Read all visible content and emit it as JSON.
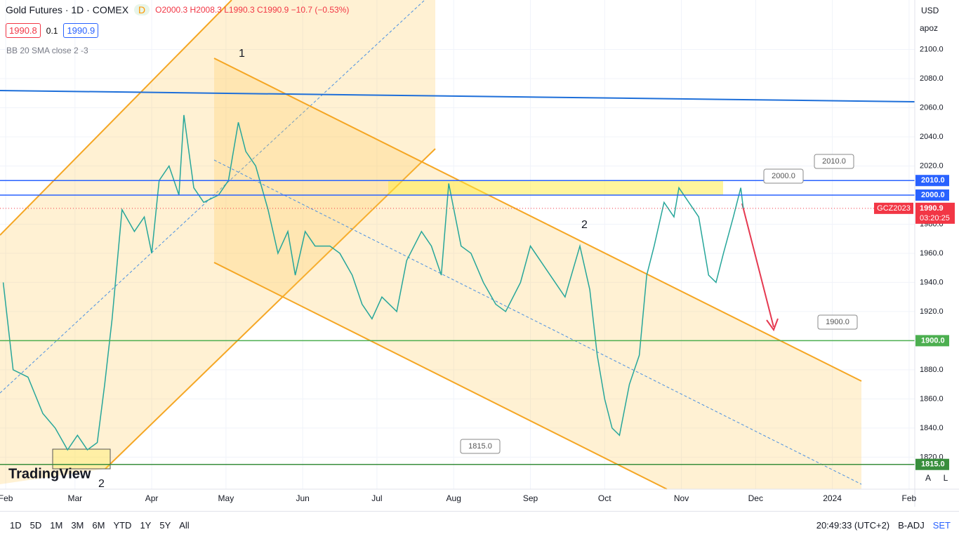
{
  "header": {
    "symbol": "Gold Futures · 1D · COMEX",
    "badge": "D",
    "ohlc": "O2000.3 H2008.3 L1990.3 C1990.9 −10.7 (−0.53%)",
    "sell": "1990.8",
    "spread": "0.1",
    "buy": "1990.9",
    "indicator": "BB 20 SMA close 2 -3"
  },
  "top_right": {
    "currency": "USD",
    "setting": "apoz"
  },
  "chart_data": {
    "type": "line",
    "color": "#26a69a",
    "x": [
      30,
      34,
      40,
      46,
      51,
      56,
      60,
      64,
      68,
      71,
      74,
      78,
      83,
      87,
      90,
      93,
      97,
      101,
      103,
      107,
      111,
      117,
      121,
      125,
      128,
      132,
      137,
      141,
      145,
      148,
      152,
      156,
      162,
      166,
      171,
      175,
      179,
      183,
      189,
      193,
      199,
      203,
      207,
      210,
      215,
      219,
      224,
      229,
      233,
      239,
      243,
      247,
      251,
      257,
      263,
      267,
      270,
      273,
      276,
      279,
      283,
      287,
      290,
      293,
      297,
      301,
      303,
      307,
      311,
      315,
      318,
      321,
      325,
      328,
      329
    ],
    "values": [
      1940,
      1880,
      1875,
      1850,
      1840,
      1825,
      1835,
      1825,
      1830,
      1870,
      1915,
      1990,
      1975,
      1985,
      1960,
      2010,
      2020,
      2000,
      2055,
      2005,
      1995,
      2000,
      2010,
      2050,
      2030,
      2020,
      1990,
      1960,
      1975,
      1945,
      1975,
      1965,
      1965,
      1960,
      1945,
      1925,
      1915,
      1930,
      1920,
      1955,
      1975,
      1965,
      1945,
      2008,
      1965,
      1960,
      1940,
      1925,
      1920,
      1940,
      1965,
      1955,
      1945,
      1930,
      1965,
      1935,
      1890,
      1860,
      1840,
      1835,
      1870,
      1890,
      1945,
      1965,
      1995,
      1985,
      2005,
      1995,
      1985,
      1945,
      1940,
      1960,
      1985,
      2005,
      1991
    ],
    "xlim": [
      28.7,
      398.3
    ],
    "xticks": [
      {
        "value": 31,
        "label": "Feb"
      },
      {
        "value": 59,
        "label": "Mar"
      },
      {
        "value": 90,
        "label": "Apr"
      },
      {
        "value": 120,
        "label": "May"
      },
      {
        "value": 151,
        "label": "Jun"
      },
      {
        "value": 181,
        "label": "Jul"
      },
      {
        "value": 212,
        "label": "Aug"
      },
      {
        "value": 243,
        "label": "Sep"
      },
      {
        "value": 273,
        "label": "Oct"
      },
      {
        "value": 304,
        "label": "Nov"
      },
      {
        "value": 334,
        "label": "Dec"
      },
      {
        "value": 365,
        "label": "2024"
      },
      {
        "value": 396,
        "label": "Feb"
      }
    ],
    "ylim": [
      1798,
      2134
    ],
    "yticks": [
      {
        "value": 1820,
        "label": "1820.0"
      },
      {
        "value": 1840,
        "label": "1840.0"
      },
      {
        "value": 1860,
        "label": "1860.0"
      },
      {
        "value": 1880,
        "label": "1880.0"
      },
      {
        "value": 1920,
        "label": "1920.0"
      },
      {
        "value": 1940,
        "label": "1940.0"
      },
      {
        "value": 1960,
        "label": "1960.0"
      },
      {
        "value": 1980,
        "label": "1980.0"
      },
      {
        "value": 2020,
        "label": "2020.0"
      },
      {
        "value": 2040,
        "label": "2040.0"
      },
      {
        "value": 2060,
        "label": "2060.0"
      },
      {
        "value": 2080,
        "label": "2080.0"
      },
      {
        "value": 2100,
        "label": "2100.0"
      }
    ],
    "grid": true,
    "levels": [
      {
        "value": 2010,
        "label": "2010.0",
        "color": "#2962ff"
      },
      {
        "value": 2000,
        "label": "2000.0",
        "color": "#2962ff"
      },
      {
        "value": 1900,
        "label": "1900.0",
        "color": "#4caf50"
      },
      {
        "value": 1815,
        "label": "1815.0",
        "color": "#388e3c"
      }
    ],
    "last_price": {
      "symbol": "GCZ2023",
      "value": 1990.9,
      "countdown": "03:20:25"
    },
    "annotations": [
      "1",
      "2",
      "2"
    ]
  },
  "logo": "TradingView",
  "scale_buttons": [
    "A",
    "L"
  ],
  "timeframes": [
    "1D",
    "5D",
    "1M",
    "3M",
    "6M",
    "YTD",
    "1Y",
    "5Y",
    "All"
  ],
  "footer": {
    "time": "20:49:33 (UTC+2)",
    "adj": "B-ADJ",
    "session": "SET"
  }
}
